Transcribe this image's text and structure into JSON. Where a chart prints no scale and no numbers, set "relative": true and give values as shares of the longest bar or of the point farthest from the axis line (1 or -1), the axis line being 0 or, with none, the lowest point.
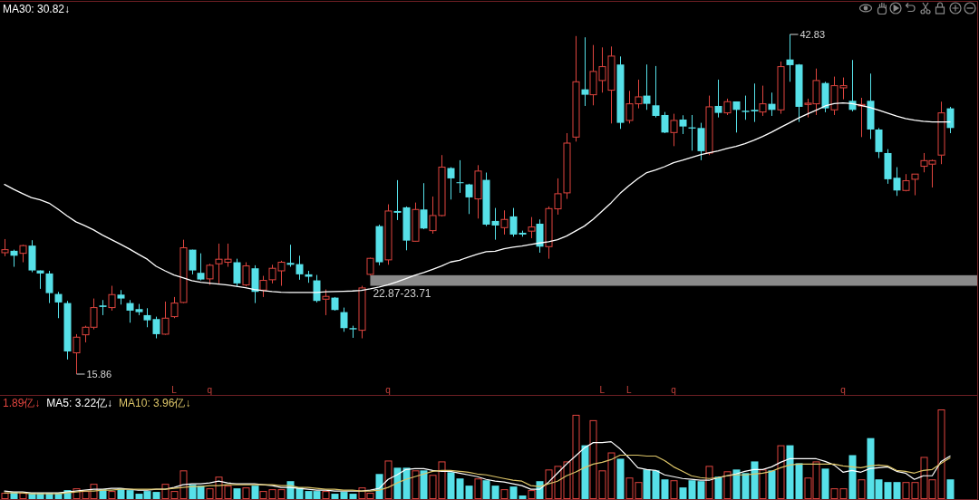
{
  "chart_data": [
    {
      "type": "candlestick",
      "categories": [
        null,
        null,
        null,
        null,
        null,
        null,
        null,
        null,
        null,
        null,
        null,
        null,
        null,
        null,
        null,
        null,
        null,
        null,
        null,
        "L",
        null,
        null,
        null,
        "q",
        null,
        null,
        null,
        null,
        null,
        null,
        null,
        null,
        null,
        null,
        null,
        null,
        null,
        null,
        null,
        null,
        null,
        null,
        null,
        "q",
        null,
        null,
        null,
        null,
        null,
        null,
        null,
        null,
        null,
        null,
        null,
        null,
        null,
        null,
        null,
        null,
        null,
        null,
        null,
        null,
        null,
        null,
        null,
        "L",
        null,
        null,
        "L",
        null,
        null,
        null,
        null,
        "q",
        null,
        null,
        null,
        null,
        null,
        null,
        null,
        null,
        null,
        null,
        null,
        null,
        null,
        null,
        null,
        null,
        null,
        null,
        "q",
        null,
        null,
        null,
        null,
        null,
        null,
        null,
        null,
        null,
        null,
        null,
        null
      ],
      "ohlc": [
        [
          25.5,
          26.58,
          25.22,
          25.74
        ],
        [
          25.65,
          25.74,
          24.38,
          25.26
        ],
        [
          25.45,
          26.13,
          24.74,
          26.06
        ],
        [
          26.06,
          26.49,
          23.95,
          24.09
        ],
        [
          24.09,
          24.09,
          22.63,
          23.85
        ],
        [
          23.85,
          24.06,
          21.5,
          22.29
        ],
        [
          22.22,
          22.39,
          20.3,
          21.55
        ],
        [
          21.5,
          21.67,
          17.02,
          17.66
        ],
        [
          17.55,
          19.03,
          15.86,
          18.79
        ],
        [
          18.98,
          19.7,
          18.38,
          19.58
        ],
        [
          19.58,
          21.86,
          19.41,
          21.14
        ],
        [
          21.31,
          21.74,
          20.54,
          21.19
        ],
        [
          21.14,
          22.87,
          20.9,
          22.17
        ],
        [
          22.17,
          22.53,
          21.38,
          21.86
        ],
        [
          21.5,
          21.74,
          19.94,
          20.9
        ],
        [
          21.02,
          21.43,
          20.54,
          20.78
        ],
        [
          20.54,
          21.09,
          19.58,
          20.13
        ],
        [
          20.23,
          20.42,
          18.7,
          19.03
        ],
        [
          19.03,
          21.62,
          18.98,
          20.3
        ],
        [
          20.42,
          21.98,
          20.3,
          21.5
        ],
        [
          21.55,
          26.53,
          21.5,
          25.89
        ],
        [
          25.74,
          25.74,
          23.78,
          24.09
        ],
        [
          23.9,
          25.45,
          23.3,
          23.37
        ],
        [
          23.42,
          24.62,
          22.94,
          24.5
        ],
        [
          24.62,
          26.22,
          23.06,
          24.98
        ],
        [
          24.74,
          26.22,
          24.38,
          24.98
        ],
        [
          24.74,
          25.02,
          22.82,
          23.06
        ],
        [
          22.94,
          24.74,
          22.82,
          24.45
        ],
        [
          24.26,
          24.5,
          21.5,
          22.39
        ],
        [
          22.53,
          23.66,
          21.98,
          23.3
        ],
        [
          23.35,
          24.54,
          23.06,
          24.26
        ],
        [
          24.06,
          24.86,
          22.87,
          24.74
        ],
        [
          24.69,
          26.13,
          24.38,
          24.54
        ],
        [
          24.59,
          25.26,
          23.35,
          23.78
        ],
        [
          23.78,
          24.06,
          23.11,
          23.59
        ],
        [
          23.3,
          23.73,
          21.55,
          21.67
        ],
        [
          21.81,
          22.58,
          20.54,
          22.03
        ],
        [
          21.93,
          21.98,
          20.9,
          20.95
        ],
        [
          20.78,
          21.14,
          19.22,
          19.51
        ],
        [
          19.51,
          19.7,
          18.74,
          19.41
        ],
        [
          19.34,
          22.87,
          18.7,
          22.7
        ],
        [
          23.78,
          25.1,
          23.71,
          25.05
        ],
        [
          27.61,
          27.73,
          24.5,
          24.74
        ],
        [
          24.93,
          29.34,
          24.54,
          28.81
        ],
        [
          28.81,
          31.26,
          28.09,
          28.67
        ],
        [
          29.1,
          29.17,
          25.69,
          26.46
        ],
        [
          26.41,
          29.48,
          26.37,
          28.93
        ],
        [
          28.93,
          31.02,
          27.37,
          27.42
        ],
        [
          27.25,
          29.96,
          27.01,
          28.45
        ],
        [
          28.45,
          33.25,
          28.38,
          32.29
        ],
        [
          32.22,
          32.29,
          29.72,
          31.4
        ],
        [
          31.09,
          32.84,
          30.25,
          31.02
        ],
        [
          30.92,
          30.97,
          28.57,
          29.89
        ],
        [
          29.77,
          32.45,
          28.21,
          31.98
        ],
        [
          31.28,
          31.86,
          27.61,
          27.73
        ],
        [
          28.02,
          29.05,
          26.53,
          27.66
        ],
        [
          27.49,
          28.86,
          26.94,
          28.14
        ],
        [
          28.38,
          29.05,
          26.77,
          26.94
        ],
        [
          27.08,
          27.25,
          26.77,
          26.94
        ],
        [
          27.21,
          28.33,
          26.65,
          27.54
        ],
        [
          27.8,
          28.14,
          25.5,
          25.98
        ],
        [
          25.98,
          29.17,
          25.02,
          29.0
        ],
        [
          28.98,
          31.4,
          28.52,
          30.18
        ],
        [
          30.25,
          34.99,
          29.77,
          34.2
        ],
        [
          34.68,
          42.7,
          34.32,
          39.07
        ],
        [
          38.47,
          42.6,
          37.15,
          38.04
        ],
        [
          38.04,
          41.99,
          37.2,
          39.89
        ],
        [
          39.17,
          41.8,
          38.21,
          40.27
        ],
        [
          38.4,
          41.87,
          35.76,
          41.11
        ],
        [
          40.44,
          41.08,
          35.33,
          35.81
        ],
        [
          36.0,
          38.35,
          35.76,
          37.32
        ],
        [
          37.32,
          39.24,
          36.96,
          37.87
        ],
        [
          37.97,
          40.44,
          36.84,
          37.32
        ],
        [
          37.2,
          40.32,
          36.24,
          36.36
        ],
        [
          36.43,
          36.67,
          34.99,
          35.04
        ],
        [
          35.04,
          36.53,
          33.96,
          36.0
        ],
        [
          36.07,
          36.41,
          34.92,
          35.52
        ],
        [
          35.45,
          36.43,
          33.6,
          35.36
        ],
        [
          35.4,
          35.81,
          32.84,
          33.56
        ],
        [
          33.41,
          37.97,
          33.25,
          37.08
        ],
        [
          37.15,
          39.24,
          36.24,
          36.6
        ],
        [
          36.6,
          37.73,
          36.43,
          37.49
        ],
        [
          37.51,
          37.51,
          35.04,
          36.84
        ],
        [
          36.77,
          37.97,
          36.05,
          36.67
        ],
        [
          36.84,
          38.93,
          35.88,
          36.72
        ],
        [
          36.67,
          38.76,
          36.36,
          37.32
        ],
        [
          37.32,
          38.21,
          36.36,
          36.84
        ],
        [
          36.84,
          40.68,
          36.53,
          40.27
        ],
        [
          40.84,
          42.83,
          39.07,
          40.39
        ],
        [
          40.44,
          40.48,
          35.88,
          37.08
        ],
        [
          37.27,
          37.73,
          36.24,
          37.37
        ],
        [
          37.32,
          40.12,
          36.43,
          39.17
        ],
        [
          38.97,
          39.07,
          36.65,
          36.96
        ],
        [
          36.84,
          39.48,
          36.43,
          38.76
        ],
        [
          38.59,
          39.41,
          37.68,
          38.76
        ],
        [
          37.56,
          40.8,
          36.72,
          36.84
        ],
        [
          37.15,
          37.8,
          34.68,
          37.27
        ],
        [
          37.56,
          39.72,
          34.52,
          35.28
        ],
        [
          35.28,
          35.4,
          33.01,
          33.49
        ],
        [
          33.41,
          33.72,
          30.97,
          31.33
        ],
        [
          31.45,
          32.29,
          30.01,
          30.44
        ],
        [
          30.44,
          31.74,
          30.37,
          31.21
        ],
        [
          31.33,
          31.74,
          30.06,
          31.74
        ],
        [
          32.36,
          33.41,
          31.88,
          32.81
        ],
        [
          32.53,
          32.89,
          30.68,
          32.81
        ],
        [
          33.25,
          37.49,
          32.53,
          36.6
        ],
        [
          36.96,
          37.08,
          34.99,
          35.4
        ]
      ],
      "colors": [
        "#e0453f",
        "#56e0e8",
        "#e0453f",
        "#56e0e8",
        "#56e0e8",
        "#56e0e8",
        "#56e0e8",
        "#56e0e8",
        "#e0453f",
        "#e0453f",
        "#e0453f",
        "#56e0e8",
        "#e0453f",
        "#56e0e8",
        "#56e0e8",
        "#56e0e8",
        "#56e0e8",
        "#56e0e8",
        "#e0453f",
        "#e0453f",
        "#e0453f",
        "#56e0e8",
        "#56e0e8",
        "#e0453f",
        "#e0453f",
        "#e0453f",
        "#56e0e8",
        "#e0453f",
        "#56e0e8",
        "#e0453f",
        "#e0453f",
        "#e0453f",
        "#56e0e8",
        "#56e0e8",
        "#56e0e8",
        "#56e0e8",
        "#e0453f",
        "#56e0e8",
        "#56e0e8",
        "#56e0e8",
        "#e0453f",
        "#e0453f",
        "#56e0e8",
        "#e0453f",
        "#56e0e8",
        "#56e0e8",
        "#e0453f",
        "#56e0e8",
        "#e0453f",
        "#e0453f",
        "#56e0e8",
        "#56e0e8",
        "#56e0e8",
        "#e0453f",
        "#56e0e8",
        "#56e0e8",
        "#e0453f",
        "#56e0e8",
        "#56e0e8",
        "#e0453f",
        "#56e0e8",
        "#e0453f",
        "#e0453f",
        "#e0453f",
        "#e0453f",
        "#56e0e8",
        "#e0453f",
        "#e0453f",
        "#e0453f",
        "#56e0e8",
        "#e0453f",
        "#e0453f",
        "#56e0e8",
        "#56e0e8",
        "#56e0e8",
        "#e0453f",
        "#56e0e8",
        "#56e0e8",
        "#56e0e8",
        "#e0453f",
        "#56e0e8",
        "#e0453f",
        "#56e0e8",
        "#56e0e8",
        "#56e0e8",
        "#e0453f",
        "#56e0e8",
        "#e0453f",
        "#56e0e8",
        "#56e0e8",
        "#e0453f",
        "#e0453f",
        "#56e0e8",
        "#e0453f",
        "#e0453f",
        "#56e0e8",
        "#e0453f",
        "#56e0e8",
        "#56e0e8",
        "#56e0e8",
        "#56e0e8",
        "#e0453f",
        "#e0453f",
        "#e0453f",
        "#e0453f",
        "#e0453f",
        "#56e0e8"
      ],
      "value_labels": [
        null,
        null,
        null,
        null,
        null,
        null,
        null,
        null,
        "15.86",
        null,
        null,
        null,
        null,
        null,
        null,
        null,
        null,
        null,
        null,
        null,
        null,
        null,
        null,
        null,
        null,
        null,
        null,
        null,
        null,
        null,
        null,
        null,
        null,
        null,
        null,
        null,
        null,
        null,
        null,
        null,
        null,
        null,
        null,
        null,
        null,
        null,
        null,
        null,
        null,
        null,
        null,
        null,
        null,
        null,
        null,
        null,
        null,
        null,
        null,
        null,
        null,
        null,
        null,
        null,
        null,
        null,
        null,
        null,
        null,
        null,
        null,
        null,
        null,
        null,
        null,
        null,
        null,
        null,
        null,
        null,
        null,
        null,
        null,
        null,
        null,
        null,
        null,
        null,
        "42.83",
        null,
        null,
        null,
        null,
        null,
        null,
        null,
        null,
        null,
        null,
        null,
        null,
        null,
        null,
        null,
        null,
        null,
        null
      ],
      "series": [
        {
          "name": "MA30: 30.82↓",
          "type": "line",
          "color": "#ffffff",
          "values": [
            30.92,
            30.54,
            30.2,
            29.87,
            29.7,
            29.43,
            28.95,
            28.43,
            27.95,
            27.64,
            27.3,
            26.89,
            26.53,
            26.17,
            25.79,
            25.38,
            24.98,
            24.42,
            24.06,
            23.73,
            23.51,
            23.27,
            23.15,
            23.08,
            23.01,
            22.94,
            22.82,
            22.72,
            22.58,
            22.48,
            22.41,
            22.36,
            22.34,
            22.34,
            22.34,
            22.34,
            22.39,
            22.41,
            22.43,
            22.46,
            22.51,
            22.63,
            22.77,
            22.96,
            23.18,
            23.44,
            23.71,
            23.92,
            24.18,
            24.45,
            24.76,
            24.9,
            25.14,
            25.38,
            25.58,
            25.62,
            25.81,
            25.93,
            26.03,
            26.15,
            26.27,
            26.37,
            26.53,
            26.82,
            27.21,
            27.61,
            28.16,
            28.81,
            29.46,
            30.2,
            30.82,
            31.38,
            31.86,
            32.07,
            32.33,
            32.65,
            32.84,
            33.05,
            33.27,
            33.44,
            33.58,
            33.77,
            33.94,
            34.16,
            34.42,
            34.73,
            35.07,
            35.45,
            35.81,
            36.19,
            36.51,
            36.82,
            37.15,
            37.34,
            37.39,
            37.34,
            37.2,
            37.03,
            36.82,
            36.58,
            36.34,
            36.15,
            36.03,
            35.93,
            35.88,
            35.88,
            35.88
          ]
        }
      ],
      "bands": [
        {
          "axis": "y",
          "from": 22.87,
          "to": 23.71,
          "label": "22.87-23.71",
          "color": "#8a8a8a"
        }
      ],
      "legend": "top left",
      "tick_labels": "x"
    },
    {
      "type": "bar",
      "relative": true,
      "title": "1.89亿↓",
      "categories": [
        null,
        null,
        null,
        null,
        null,
        null,
        null,
        null,
        null,
        null,
        null,
        null,
        null,
        null,
        null,
        null,
        null,
        null,
        null,
        null,
        null,
        null,
        null,
        null,
        null,
        null,
        null,
        null,
        null,
        null,
        null,
        null,
        null,
        null,
        null,
        null,
        null,
        null,
        null,
        null,
        null,
        null,
        null,
        null,
        null,
        null,
        null,
        null,
        null,
        null,
        null,
        null,
        null,
        null,
        null,
        null,
        null,
        null,
        null,
        null,
        null,
        null,
        null,
        null,
        null,
        null,
        null,
        null,
        null,
        null,
        null,
        null,
        null,
        null,
        null,
        null,
        null,
        null,
        null,
        null,
        null,
        null,
        null,
        null,
        null,
        null,
        null,
        null,
        null,
        null,
        null,
        null,
        null,
        null,
        null,
        null,
        null,
        null,
        null,
        null,
        null,
        null,
        null,
        null,
        null,
        null,
        null
      ],
      "series": [
        {
          "colors": [
            "#e0453f",
            "#56e0e8",
            "#e0453f",
            "#56e0e8",
            "#56e0e8",
            "#56e0e8",
            "#56e0e8",
            "#56e0e8",
            "#e0453f",
            "#e0453f",
            "#e0453f",
            "#56e0e8",
            "#e0453f",
            "#56e0e8",
            "#56e0e8",
            "#56e0e8",
            "#56e0e8",
            "#56e0e8",
            "#e0453f",
            "#e0453f",
            "#e0453f",
            "#56e0e8",
            "#56e0e8",
            "#e0453f",
            "#e0453f",
            "#e0453f",
            "#56e0e8",
            "#e0453f",
            "#56e0e8",
            "#e0453f",
            "#e0453f",
            "#e0453f",
            "#56e0e8",
            "#56e0e8",
            "#56e0e8",
            "#56e0e8",
            "#e0453f",
            "#56e0e8",
            "#56e0e8",
            "#56e0e8",
            "#e0453f",
            "#e0453f",
            "#56e0e8",
            "#e0453f",
            "#56e0e8",
            "#56e0e8",
            "#e0453f",
            "#56e0e8",
            "#e0453f",
            "#e0453f",
            "#56e0e8",
            "#56e0e8",
            "#56e0e8",
            "#e0453f",
            "#56e0e8",
            "#56e0e8",
            "#e0453f",
            "#56e0e8",
            "#56e0e8",
            "#e0453f",
            "#56e0e8",
            "#e0453f",
            "#e0453f",
            "#e0453f",
            "#e0453f",
            "#56e0e8",
            "#e0453f",
            "#e0453f",
            "#e0453f",
            "#56e0e8",
            "#e0453f",
            "#e0453f",
            "#56e0e8",
            "#56e0e8",
            "#56e0e8",
            "#e0453f",
            "#56e0e8",
            "#56e0e8",
            "#56e0e8",
            "#e0453f",
            "#56e0e8",
            "#e0453f",
            "#56e0e8",
            "#56e0e8",
            "#56e0e8",
            "#e0453f",
            "#56e0e8",
            "#e0453f",
            "#56e0e8",
            "#56e0e8",
            "#e0453f",
            "#e0453f",
            "#56e0e8",
            "#e0453f",
            "#e0453f",
            "#56e0e8",
            "#e0453f",
            "#56e0e8",
            "#56e0e8",
            "#56e0e8",
            "#56e0e8",
            "#e0453f",
            "#e0453f",
            "#e0453f",
            "#e0453f",
            "#e0453f",
            "#56e0e8"
          ],
          "values": [
            0.07,
            0.08,
            0.07,
            0.07,
            0.07,
            0.07,
            0.07,
            0.1,
            0.12,
            0.09,
            0.17,
            0.11,
            0.09,
            0.12,
            0.1,
            0.06,
            0.09,
            0.08,
            0.17,
            0.09,
            0.32,
            0.16,
            0.15,
            0.12,
            0.25,
            0.15,
            0.12,
            0.13,
            0.15,
            0.09,
            0.11,
            0.11,
            0.2,
            0.13,
            0.09,
            0.09,
            0.09,
            0.06,
            0.08,
            0.06,
            0.13,
            0.07,
            0.28,
            0.43,
            0.35,
            0.35,
            0.32,
            0.32,
            0.27,
            0.42,
            0.3,
            0.23,
            0.15,
            0.23,
            0.21,
            0.15,
            0.11,
            0.14,
            0.04,
            0.1,
            0.2,
            0.33,
            0.37,
            0.42,
            0.94,
            0.6,
            0.88,
            0.32,
            0.52,
            0.45,
            0.24,
            0.19,
            0.33,
            0.32,
            0.22,
            0.21,
            0.13,
            0.21,
            0.2,
            0.37,
            0.25,
            0.31,
            0.33,
            0.29,
            0.42,
            0.33,
            0.32,
            0.6,
            0.6,
            0.4,
            0.24,
            0.42,
            0.34,
            0.12,
            0.12,
            0.49,
            0.22,
            0.68,
            0.22,
            0.19,
            0.19,
            0.19,
            0.19,
            0.47,
            0.22,
            1,
            0.22
          ]
        },
        {
          "name": "MA5: 3.22亿↓",
          "type": "line",
          "color": "#ffffff",
          "values": [
            0.09,
            0.08,
            0.08,
            0.07,
            0.07,
            0.07,
            0.07,
            0.08,
            0.09,
            0.1,
            0.11,
            0.11,
            0.12,
            0.12,
            0.11,
            0.1,
            0.1,
            0.11,
            0.11,
            0.13,
            0.16,
            0.17,
            0.17,
            0.18,
            0.2,
            0.18,
            0.17,
            0.17,
            0.17,
            0.16,
            0.15,
            0.13,
            0.13,
            0.12,
            0.11,
            0.1,
            0.1,
            0.09,
            0.09,
            0.09,
            0.09,
            0.1,
            0.12,
            0.22,
            0.27,
            0.33,
            0.34,
            0.34,
            0.32,
            0.31,
            0.31,
            0.29,
            0.27,
            0.25,
            0.22,
            0.2,
            0.19,
            0.17,
            0.15,
            0.11,
            0.11,
            0.19,
            0.29,
            0.39,
            0.48,
            0.57,
            0.63,
            0.63,
            0.64,
            0.56,
            0.46,
            0.35,
            0.33,
            0.32,
            0.27,
            0.25,
            0.23,
            0.22,
            0.21,
            0.21,
            0.24,
            0.26,
            0.28,
            0.31,
            0.33,
            0.33,
            0.36,
            0.41,
            0.45,
            0.45,
            0.45,
            0.45,
            0.42,
            0.38,
            0.3,
            0.32,
            0.3,
            0.34,
            0.35,
            0.36,
            0.31,
            0.29,
            0.22,
            0.26,
            0.26,
            0.42,
            0.48
          ]
        },
        {
          "name": "MA10: 3.96亿↓",
          "type": "line",
          "color": "#dcc468",
          "values": [
            0.07,
            0.07,
            0.07,
            0.06,
            0.06,
            0.06,
            0.06,
            0.07,
            0.08,
            0.09,
            0.09,
            0.1,
            0.1,
            0.11,
            0.11,
            0.11,
            0.11,
            0.11,
            0.11,
            0.12,
            0.13,
            0.14,
            0.14,
            0.15,
            0.15,
            0.16,
            0.16,
            0.16,
            0.16,
            0.16,
            0.16,
            0.15,
            0.15,
            0.13,
            0.13,
            0.12,
            0.11,
            0.11,
            0.1,
            0.1,
            0.09,
            0.09,
            0.1,
            0.13,
            0.18,
            0.22,
            0.25,
            0.28,
            0.31,
            0.32,
            0.32,
            0.31,
            0.3,
            0.28,
            0.27,
            0.25,
            0.23,
            0.21,
            0.2,
            0.15,
            0.14,
            0.17,
            0.2,
            0.26,
            0.3,
            0.35,
            0.39,
            0.41,
            0.44,
            0.49,
            0.49,
            0.49,
            0.48,
            0.48,
            0.43,
            0.36,
            0.31,
            0.26,
            0.24,
            0.23,
            0.24,
            0.26,
            0.27,
            0.27,
            0.28,
            0.29,
            0.31,
            0.35,
            0.38,
            0.39,
            0.39,
            0.39,
            0.39,
            0.39,
            0.37,
            0.36,
            0.35,
            0.37,
            0.38,
            0.37,
            0.32,
            0.31,
            0.29,
            0.32,
            0.33,
            0.4,
            0.46
          ]
        }
      ],
      "legend": "top left"
    }
  ]
}
